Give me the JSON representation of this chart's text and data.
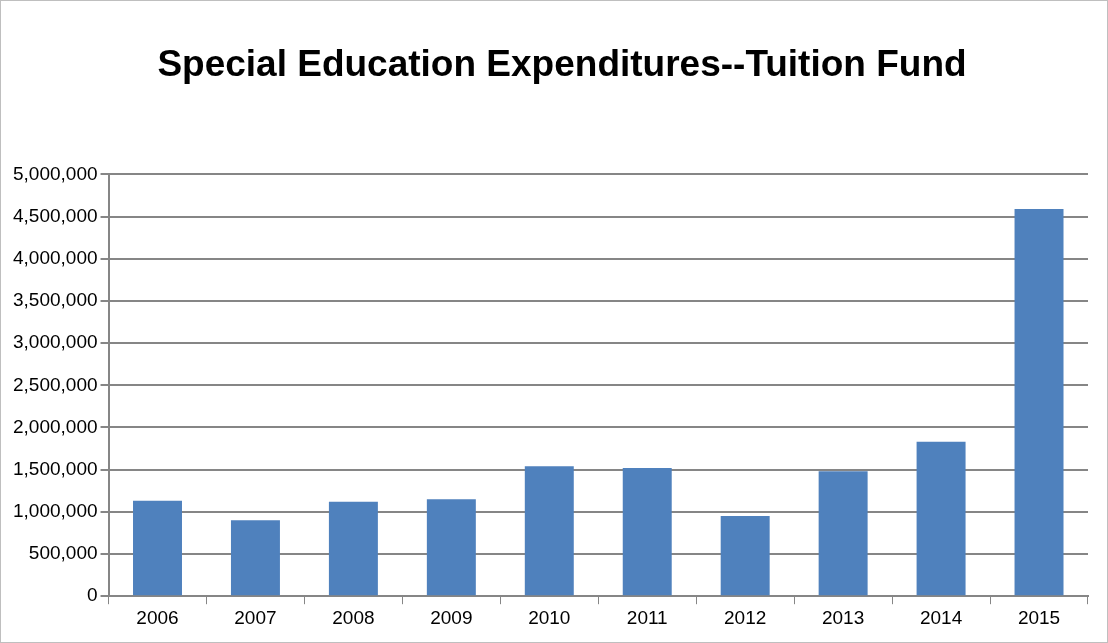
{
  "chart_data": {
    "type": "bar",
    "title": "Special Education Expenditures--Tuition Fund",
    "categories": [
      "2006",
      "2007",
      "2008",
      "2009",
      "2010",
      "2011",
      "2012",
      "2013",
      "2014",
      "2015"
    ],
    "values": [
      1130000,
      900000,
      1120000,
      1150000,
      1540000,
      1520000,
      950000,
      1480000,
      1830000,
      4590000
    ],
    "color": "#4f81bd",
    "ylim": [
      0,
      5000000
    ],
    "yticks": [
      {
        "value": 0,
        "label": "0"
      },
      {
        "value": 500000,
        "label": "500,000"
      },
      {
        "value": 1000000,
        "label": "1,000,000"
      },
      {
        "value": 1500000,
        "label": "1,500,000"
      },
      {
        "value": 2000000,
        "label": "2,000,000"
      },
      {
        "value": 2500000,
        "label": "2,500,000"
      },
      {
        "value": 3000000,
        "label": "3,000,000"
      },
      {
        "value": 3500000,
        "label": "3,500,000"
      },
      {
        "value": 4000000,
        "label": "4,000,000"
      },
      {
        "value": 4500000,
        "label": "4,500,000"
      },
      {
        "value": 5000000,
        "label": "5,000,000"
      }
    ],
    "grid": "y"
  }
}
